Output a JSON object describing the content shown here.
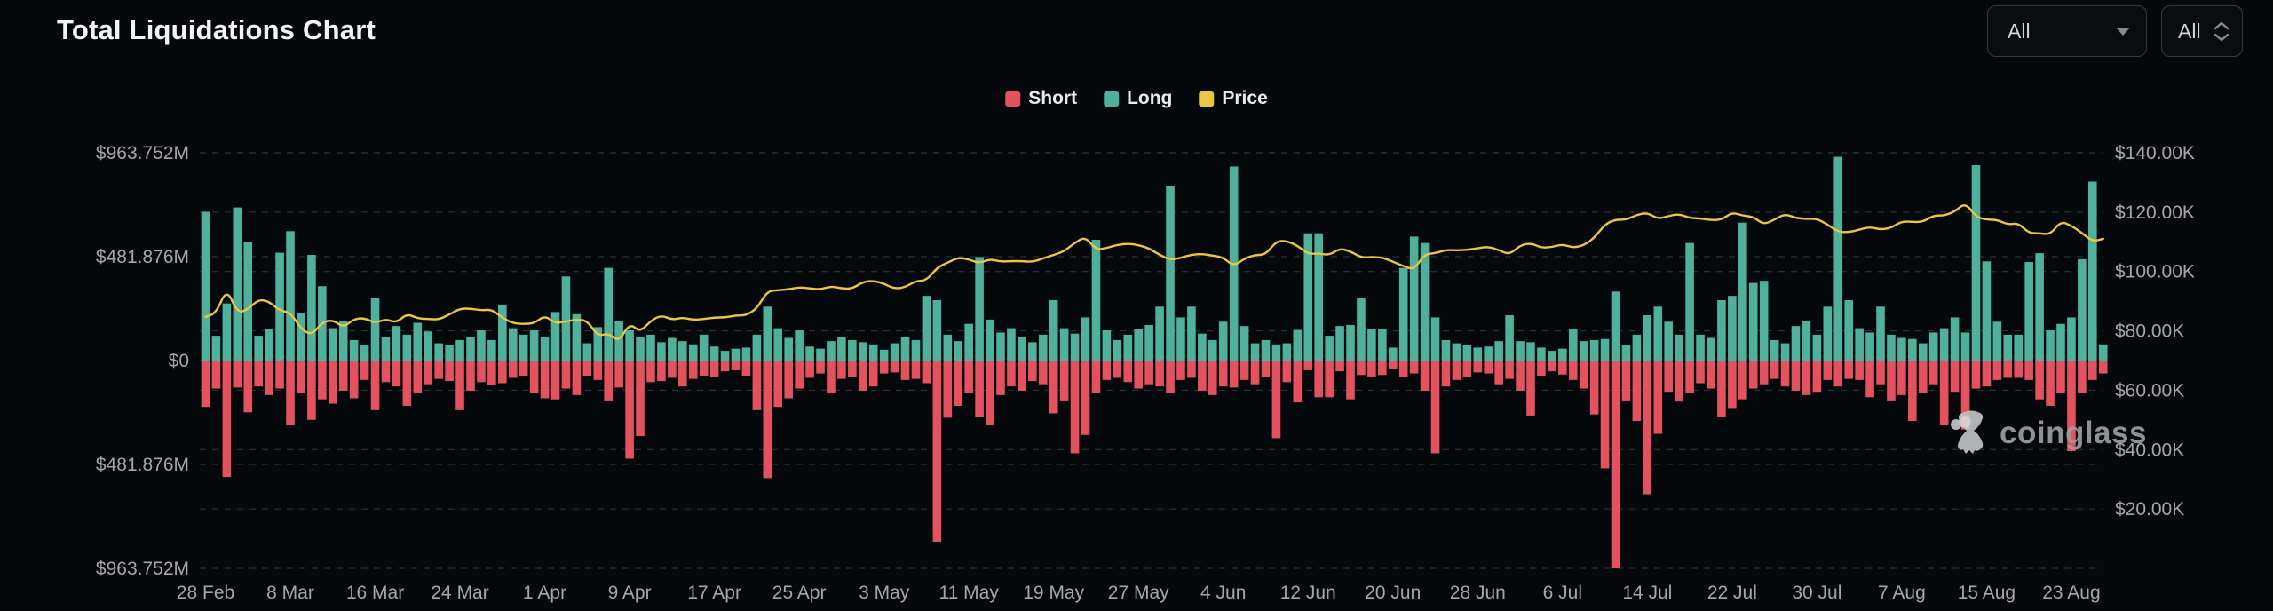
{
  "title": "Total Liquidations Chart",
  "controls": {
    "pair_select": {
      "value": "All"
    },
    "range_select": {
      "value": "All"
    }
  },
  "legend": {
    "short": {
      "label": "Short",
      "color": "#e4515f"
    },
    "long": {
      "label": "Long",
      "color": "#4fb09b"
    },
    "price": {
      "label": "Price",
      "color": "#ecc543"
    }
  },
  "watermark": {
    "text": "coinglass"
  },
  "colors": {
    "background": "#06090c",
    "long_bar": "#4fb09b",
    "short_bar": "#e4515f",
    "price_line": "#ecc543",
    "grid_line": "#3a3f45",
    "axis_text": "#a2a7ad"
  },
  "chart_data": {
    "type": "bar+line",
    "title": "Total Liquidations Chart",
    "grid": "dashed horizontal",
    "legend_position": "top-center",
    "x_tick_labels": [
      "28 Feb",
      "8 Mar",
      "16 Mar",
      "24 Mar",
      "1 Apr",
      "9 Apr",
      "17 Apr",
      "25 Apr",
      "3 May",
      "11 May",
      "19 May",
      "27 May",
      "4 Jun",
      "12 Jun",
      "20 Jun",
      "28 Jun",
      "6 Jul",
      "14 Jul",
      "22 Jul",
      "30 Jul",
      "7 Aug",
      "15 Aug",
      "23 Aug"
    ],
    "x_tick_every_n_bars": 8,
    "bars_per_day": 1,
    "y_left": {
      "tick_labels": [
        "$963.752M",
        "$481.876M",
        "$0",
        "$481.876M",
        "$963.752M"
      ],
      "tick_values": [
        963.752,
        481.876,
        0,
        -481.876,
        -963.752
      ],
      "unit": "USD millions",
      "note": "Long bars plot upward, Short bars plot downward"
    },
    "y_right": {
      "tick_labels": [
        "$140.00K",
        "$120.00K",
        "$100.00K",
        "$80.00K",
        "$60.00K",
        "$40.00K",
        "$20.00K"
      ],
      "tick_values": [
        140,
        120,
        100,
        80,
        60,
        40,
        20
      ],
      "unit": "USD thousands",
      "range": [
        0,
        140
      ]
    },
    "series": [
      {
        "name": "Long",
        "type": "bar",
        "color": "#4fb09b",
        "direction": "up",
        "unit": "$M",
        "values": [
          690,
          115,
          265,
          710,
          550,
          115,
          145,
          500,
          600,
          220,
          490,
          345,
          150,
          185,
          95,
          70,
          290,
          110,
          160,
          120,
          175,
          135,
          80,
          70,
          95,
          110,
          140,
          95,
          260,
          150,
          120,
          140,
          110,
          225,
          390,
          215,
          80,
          155,
          430,
          185,
          140,
          110,
          120,
          85,
          105,
          90,
          75,
          120,
          65,
          45,
          55,
          60,
          120,
          250,
          150,
          105,
          140,
          65,
          55,
          90,
          110,
          95,
          85,
          75,
          50,
          80,
          110,
          95,
          300,
          280,
          120,
          90,
          170,
          480,
          190,
          130,
          150,
          110,
          85,
          120,
          280,
          150,
          125,
          200,
          560,
          140,
          95,
          120,
          145,
          165,
          250,
          810,
          200,
          250,
          125,
          95,
          180,
          900,
          160,
          80,
          95,
          75,
          80,
          142,
          590,
          590,
          115,
          160,
          165,
          290,
          145,
          145,
          60,
          430,
          575,
          545,
          200,
          95,
          80,
          70,
          60,
          65,
          90,
          210,
          90,
          85,
          60,
          45,
          55,
          145,
          90,
          95,
          100,
          320,
          70,
          120,
          210,
          250,
          180,
          120,
          545,
          120,
          105,
          280,
          300,
          640,
          360,
          370,
          95,
          80,
          160,
          185,
          120,
          250,
          945,
          280,
          150,
          130,
          250,
          120,
          105,
          100,
          80,
          130,
          150,
          200,
          130,
          906,
          460,
          180,
          120,
          120,
          457,
          498,
          140,
          170,
          200,
          470,
          830,
          75
        ]
      },
      {
        "name": "Short",
        "type": "bar",
        "color": "#e4515f",
        "direction": "down",
        "unit": "$M",
        "values": [
          215,
          130,
          540,
          125,
          240,
          120,
          160,
          130,
          300,
          150,
          275,
          180,
          200,
          140,
          175,
          90,
          230,
          100,
          120,
          210,
          150,
          110,
          85,
          95,
          230,
          140,
          100,
          115,
          105,
          80,
          70,
          150,
          175,
          180,
          130,
          160,
          70,
          90,
          185,
          125,
          455,
          350,
          100,
          95,
          80,
          120,
          85,
          70,
          75,
          50,
          45,
          70,
          230,
          545,
          215,
          175,
          130,
          80,
          60,
          150,
          85,
          75,
          140,
          120,
          60,
          55,
          90,
          85,
          105,
          840,
          265,
          210,
          150,
          260,
          300,
          160,
          120,
          140,
          95,
          110,
          245,
          185,
          430,
          345,
          150,
          90,
          80,
          100,
          130,
          110,
          120,
          150,
          90,
          80,
          140,
          160,
          120,
          125,
          90,
          110,
          75,
          360,
          100,
          194,
          45,
          170,
          170,
          50,
          180,
          67,
          74,
          67,
          40,
          75,
          60,
          140,
          430,
          120,
          90,
          75,
          55,
          60,
          110,
          85,
          140,
          255,
          70,
          50,
          65,
          90,
          130,
          250,
          500,
          963.752,
          185,
          280,
          620,
          340,
          145,
          190,
          150,
          105,
          130,
          260,
          220,
          180,
          130,
          110,
          85,
          120,
          140,
          160,
          145,
          90,
          120,
          85,
          90,
          170,
          110,
          185,
          160,
          280,
          150,
          110,
          300,
          145,
          320,
          130,
          120,
          90,
          80,
          80,
          90,
          180,
          210,
          150,
          420,
          150,
          90,
          60
        ]
      },
      {
        "name": "Price",
        "type": "line",
        "color": "#ecc543",
        "unit": "$K",
        "values": [
          84.7,
          86.0,
          94.3,
          86.0,
          87.2,
          90.6,
          89.9,
          86.8,
          86.2,
          80.7,
          78.5,
          82.9,
          83.7,
          81.1,
          84.0,
          84.3,
          82.6,
          84.0,
          82.7,
          85.8,
          84.2,
          84.0,
          83.8,
          85.5,
          87.5,
          87.5,
          86.9,
          87.2,
          84.4,
          82.6,
          82.3,
          82.5,
          85.2,
          82.5,
          83.2,
          83.8,
          83.5,
          78.2,
          79.2,
          76.3,
          82.6,
          79.6,
          83.4,
          85.3,
          83.7,
          84.5,
          83.7,
          84.0,
          84.5,
          84.5,
          85.2,
          85.2,
          87.5,
          93.4,
          93.7,
          94.0,
          94.7,
          94.3,
          94.0,
          95.0,
          94.3,
          94.2,
          96.5,
          96.9,
          95.9,
          94.2,
          94.7,
          96.8,
          97.0,
          101.3,
          103.0,
          104.7,
          104.1,
          102.8,
          104.2,
          103.3,
          103.5,
          103.5,
          103.2,
          104.4,
          105.6,
          106.8,
          109.7,
          111.7,
          107.3,
          107.9,
          109.0,
          109.4,
          108.9,
          107.8,
          105.6,
          103.9,
          104.6,
          105.7,
          105.9,
          105.4,
          104.7,
          101.8,
          104.4,
          105.6,
          105.7,
          110.2,
          110.3,
          108.7,
          105.9,
          106.1,
          105.5,
          107.8,
          106.8,
          104.7,
          104.9,
          104.7,
          103.3,
          101.8,
          100.6,
          105.9,
          106.1,
          107.3,
          107.1,
          107.3,
          107.8,
          108.4,
          107.2,
          105.7,
          108.8,
          109.6,
          108.0,
          108.2,
          109.2,
          108.0,
          108.8,
          111.3,
          115.9,
          117.5,
          117.4,
          119.1,
          119.8,
          117.7,
          118.7,
          119.4,
          118.0,
          117.9,
          117.3,
          117.4,
          119.9,
          118.8,
          118.4,
          115.8,
          117.5,
          119.4,
          118.0,
          117.7,
          117.8,
          115.8,
          113.4,
          113.2,
          114.1,
          115.0,
          114.1,
          114.7,
          116.9,
          116.7,
          116.7,
          118.9,
          118.8,
          120.2,
          123.2,
          118.4,
          117.4,
          117.4,
          115.8,
          116.3,
          112.9,
          112.9,
          112.4,
          116.9,
          115.4,
          113.0,
          110.1,
          111.0
        ]
      }
    ]
  }
}
